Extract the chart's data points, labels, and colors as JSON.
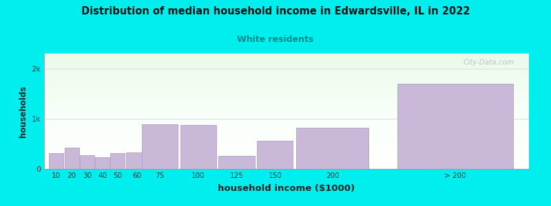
{
  "title": "Distribution of median household income in Edwardsville, IL in 2022",
  "subtitle": "White residents",
  "xlabel": "household income ($1000)",
  "ylabel": "households",
  "bg_outer": "#00EEEE",
  "bar_color": "#c9b8d8",
  "bar_edge_color": "#b0a0c8",
  "gridline_color": "#dddddd",
  "title_color": "#111111",
  "subtitle_color": "#008888",
  "axis_label_color": "#222222",
  "categories": [
    "10",
    "20",
    "30",
    "40",
    "50",
    "60",
    "75",
    "100",
    "125",
    "150",
    "200",
    "> 200"
  ],
  "values": [
    320,
    430,
    270,
    230,
    310,
    330,
    890,
    870,
    255,
    560,
    820,
    1700
  ],
  "bar_widths": [
    10,
    10,
    10,
    10,
    10,
    15,
    25,
    25,
    25,
    25,
    50,
    80
  ],
  "bar_lefts": [
    5,
    15,
    25,
    35,
    45,
    55,
    65,
    90,
    115,
    140,
    165,
    230
  ],
  "xlim": [
    2,
    318
  ],
  "ylim": [
    0,
    2300
  ],
  "yticks": [
    0,
    1000,
    2000
  ],
  "ytick_labels": [
    "0",
    "1k",
    "2k"
  ],
  "watermark": "City-Data.com"
}
